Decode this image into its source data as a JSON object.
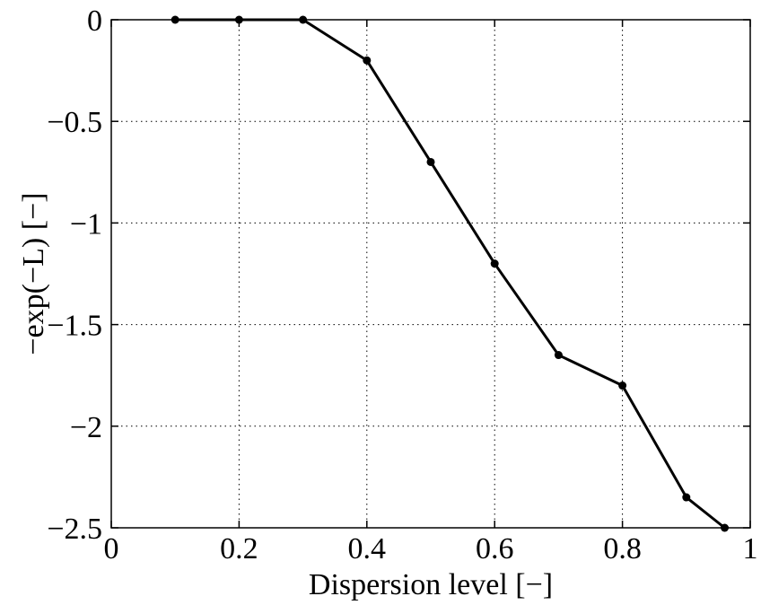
{
  "chart_data": {
    "type": "line",
    "title": "",
    "xlabel": "Dispersion level [−]",
    "ylabel": "−exp(−L) [−]",
    "xlim": [
      0,
      1
    ],
    "ylim": [
      -2.5,
      0
    ],
    "xticks": [
      0,
      0.2,
      0.4,
      0.6,
      0.8,
      1
    ],
    "xtick_labels": [
      "0",
      "0.2",
      "0.4",
      "0.6",
      "0.8",
      "1"
    ],
    "yticks": [
      0,
      -0.5,
      -1,
      -1.5,
      -2,
      -2.5
    ],
    "ytick_labels": [
      "0",
      "−0.5",
      "−1",
      "−1.5",
      "−2",
      "−2.5"
    ],
    "grid": true,
    "series": [
      {
        "color": "#000000",
        "marker": "dot",
        "x": [
          0.1,
          0.2,
          0.3,
          0.4,
          0.5,
          0.6,
          0.7,
          0.8,
          0.9,
          0.96
        ],
        "y": [
          0,
          0,
          0,
          -0.2,
          -0.7,
          -1.2,
          -1.65,
          -1.8,
          -2.35,
          -2.5
        ]
      }
    ]
  }
}
